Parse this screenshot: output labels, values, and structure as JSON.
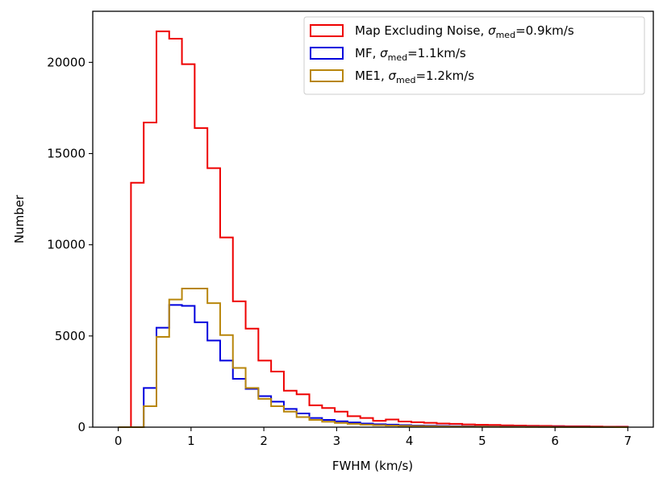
{
  "chart_data": {
    "type": "histogram-step",
    "xlabel": "FWHM (km/s)",
    "ylabel": "Number",
    "xlim": [
      -0.35,
      7.35
    ],
    "ylim": [
      0,
      22800
    ],
    "xticks": [
      0,
      1,
      2,
      3,
      4,
      5,
      6,
      7
    ],
    "yticks": [
      0,
      5000,
      10000,
      15000,
      20000
    ],
    "bin_edges": [
      0.0,
      0.175,
      0.35,
      0.525,
      0.7,
      0.875,
      1.05,
      1.225,
      1.4,
      1.575,
      1.75,
      1.925,
      2.1,
      2.275,
      2.45,
      2.625,
      2.8,
      2.975,
      3.15,
      3.325,
      3.5,
      3.675,
      3.85,
      4.025,
      4.2,
      4.375,
      4.55,
      4.725,
      4.9,
      5.075,
      5.25,
      5.425,
      5.6,
      5.775,
      5.95,
      6.125,
      6.3,
      6.475,
      6.65,
      6.825,
      7.0
    ],
    "legend_position": "upper right",
    "series": [
      {
        "name": "Map Excluding Noise",
        "legend_label": "Map Excluding Noise, ",
        "sigma_value": "=0.9km/s",
        "color": "#ee0000",
        "values": [
          0,
          13400,
          16700,
          21700,
          21300,
          19900,
          16400,
          14200,
          10400,
          6900,
          5400,
          3650,
          3050,
          2000,
          1800,
          1200,
          1050,
          850,
          600,
          500,
          350,
          420,
          310,
          270,
          240,
          200,
          180,
          150,
          130,
          120,
          100,
          90,
          80,
          70,
          60,
          50,
          50,
          40,
          30,
          30
        ]
      },
      {
        "name": "MF",
        "legend_label": "MF, ",
        "sigma_value": "=1.1km/s",
        "color": "#0000dd",
        "values": [
          0,
          0,
          2150,
          5450,
          6700,
          6650,
          5750,
          4750,
          3650,
          2650,
          2100,
          1700,
          1400,
          1000,
          750,
          500,
          400,
          320,
          260,
          200,
          160,
          140,
          110,
          90,
          80,
          65,
          55,
          45,
          40,
          35,
          30,
          25,
          20,
          18,
          15,
          12,
          10,
          8,
          6,
          5
        ]
      },
      {
        "name": "ME1",
        "legend_label": "ME1, ",
        "sigma_value": "=1.2km/s",
        "color": "#b8860b",
        "values": [
          0,
          0,
          1150,
          4950,
          7000,
          7600,
          7600,
          6800,
          5050,
          3250,
          2150,
          1550,
          1150,
          850,
          550,
          400,
          300,
          230,
          180,
          140,
          110,
          90,
          70,
          60,
          50,
          40,
          35,
          30,
          25,
          20,
          18,
          15,
          12,
          10,
          8,
          6,
          5,
          4,
          3,
          2
        ]
      }
    ],
    "sigma_symbol": "σ",
    "sigma_subscript": "med"
  }
}
